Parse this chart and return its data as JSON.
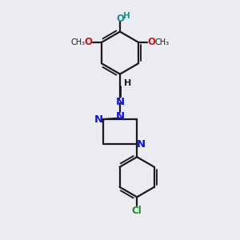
{
  "bg_color": "#ebebf2",
  "bond_color": "#1a1a1a",
  "N_color": "#1414cc",
  "O_color": "#cc1414",
  "OH_color": "#1a9090",
  "Cl_color": "#1a8c1a",
  "line_width": 1.6,
  "fig_w": 3.0,
  "fig_h": 3.0,
  "dpi": 100,
  "xlim": [
    0,
    10
  ],
  "ylim": [
    0,
    10
  ]
}
